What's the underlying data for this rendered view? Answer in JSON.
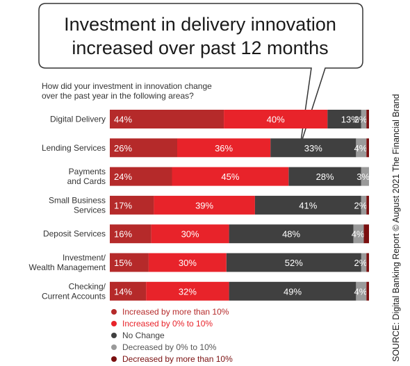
{
  "title": "Investment in delivery innovation increased over past 12 months",
  "question": "How did your investment in innovation change over the past year in the following areas?",
  "source": "SOURCE: Digital Banking Report © August 2021 The Financial Brand",
  "colors": {
    "inc_more_10": "#b52a2a",
    "inc_0_10": "#e8232a",
    "no_change": "#404040",
    "dec_0_10": "#9a9a9a",
    "dec_more_10": "#7a0f0f"
  },
  "legend": [
    {
      "label": "Increased by more than 10%",
      "color": "#b52a2a",
      "text_color": "#b52a2a"
    },
    {
      "label": "Increased by 0% to 10%",
      "color": "#e8232a",
      "text_color": "#e8232a"
    },
    {
      "label": "No Change",
      "color": "#404040",
      "text_color": "#404040"
    },
    {
      "label": "Decreased by 0% to 10%",
      "color": "#9a9a9a",
      "text_color": "#555555"
    },
    {
      "label": "Decreased by more than 10%",
      "color": "#7a0f0f",
      "text_color": "#7a0f0f"
    }
  ],
  "chart_data": {
    "type": "bar",
    "orientation": "horizontal",
    "stacked": true,
    "title": "Investment in delivery innovation increased over past 12 months",
    "xlim": [
      0,
      100
    ],
    "legend_position": "bottom",
    "categories": [
      [
        "Digital Delivery"
      ],
      [
        "Lending Services"
      ],
      [
        "Payments",
        "and Cards"
      ],
      [
        "Small Business",
        "Services"
      ],
      [
        "Deposit Services"
      ],
      [
        "Investment/",
        "Wealth Management"
      ],
      [
        "Checking/",
        "Current Accounts"
      ]
    ],
    "series": [
      {
        "name": "Increased by more than 10%",
        "values": [
          44,
          26,
          24,
          17,
          16,
          15,
          14
        ]
      },
      {
        "name": "Increased by 0% to 10%",
        "values": [
          40,
          36,
          45,
          39,
          30,
          30,
          32
        ]
      },
      {
        "name": "No Change",
        "values": [
          13,
          33,
          28,
          41,
          48,
          52,
          49
        ]
      },
      {
        "name": "Decreased by 0% to 10%",
        "values": [
          2,
          4,
          3,
          2,
          4,
          2,
          4
        ]
      },
      {
        "name": "Decreased by more than 10%",
        "values": [
          1,
          1,
          0,
          1,
          2,
          1,
          1
        ]
      }
    ],
    "value_labels": [
      [
        "44%",
        "40%",
        "13%",
        "2%",
        ""
      ],
      [
        "26%",
        "36%",
        "33%",
        "4%",
        ""
      ],
      [
        "24%",
        "45%",
        "28%",
        "3%",
        ""
      ],
      [
        "17%",
        "39%",
        "41%",
        "2%",
        ""
      ],
      [
        "16%",
        "30%",
        "48%",
        "4%",
        ""
      ],
      [
        "15%",
        "30%",
        "52%",
        "2%",
        ""
      ],
      [
        "14%",
        "32%",
        "49%",
        "4%",
        ""
      ]
    ]
  }
}
